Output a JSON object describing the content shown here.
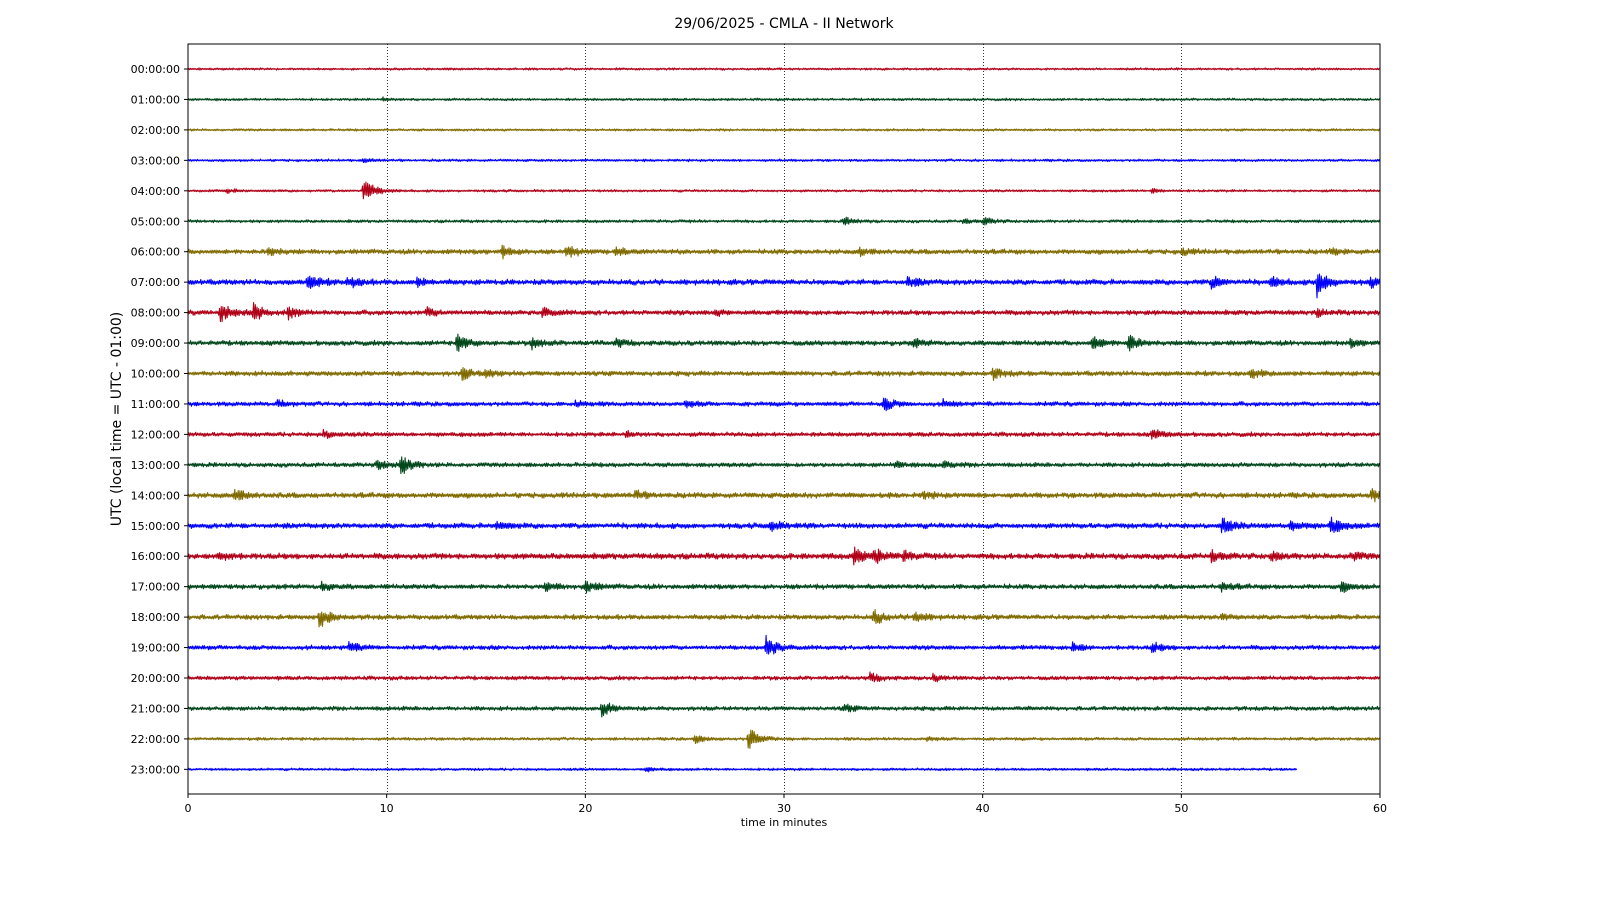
{
  "chart_data": {
    "type": "line",
    "title": "29/06/2025 - CMLA - II Network",
    "xlabel": "time in minutes",
    "ylabel": "UTC (local time = UTC - 01:00)",
    "xlim": [
      0,
      60
    ],
    "x_ticks": [
      "0",
      "10",
      "20",
      "30",
      "40",
      "50",
      "60"
    ],
    "x_tick_values": [
      0,
      10,
      20,
      30,
      40,
      50,
      60
    ],
    "vertical_gridlines_at_minutes": [
      10,
      20,
      30,
      40,
      50
    ],
    "grid": "vertical dotted",
    "legend": "none",
    "series_colors_cycle": [
      "#b00018",
      "#00471b",
      "#806b00",
      "#0000ff"
    ],
    "series": [
      {
        "label": "00:00:00",
        "color": "#b00018",
        "noise": 0.9,
        "end_minute": 60,
        "events": []
      },
      {
        "label": "01:00:00",
        "color": "#00471b",
        "noise": 1.0,
        "end_minute": 60,
        "events": [
          {
            "minute": 9.8,
            "amp": 1.5
          }
        ]
      },
      {
        "label": "02:00:00",
        "color": "#806b00",
        "noise": 0.95,
        "end_minute": 60,
        "events": []
      },
      {
        "label": "03:00:00",
        "color": "#0000ff",
        "noise": 1.0,
        "end_minute": 60,
        "events": [
          {
            "minute": 8.8,
            "amp": 2.0
          }
        ]
      },
      {
        "label": "04:00:00",
        "color": "#b00018",
        "noise": 1.0,
        "end_minute": 60,
        "events": [
          {
            "minute": 8.8,
            "amp": 14
          },
          {
            "minute": 1.9,
            "amp": 2
          },
          {
            "minute": 48.5,
            "amp": 2
          }
        ]
      },
      {
        "label": "05:00:00",
        "color": "#00471b",
        "noise": 1.2,
        "end_minute": 60,
        "events": [
          {
            "minute": 33.0,
            "amp": 4
          },
          {
            "minute": 40.0,
            "amp": 3.5
          },
          {
            "minute": 39.0,
            "amp": 2
          }
        ]
      },
      {
        "label": "06:00:00",
        "color": "#806b00",
        "noise": 2.0,
        "end_minute": 60,
        "events": [
          {
            "minute": 4.0,
            "amp": 5
          },
          {
            "minute": 15.8,
            "amp": 6
          },
          {
            "minute": 19.0,
            "amp": 6
          },
          {
            "minute": 21.5,
            "amp": 4
          },
          {
            "minute": 33.8,
            "amp": 4
          },
          {
            "minute": 50.0,
            "amp": 3
          },
          {
            "minute": 57.5,
            "amp": 3
          }
        ]
      },
      {
        "label": "07:00:00",
        "color": "#0000ff",
        "noise": 2.2,
        "end_minute": 60,
        "events": [
          {
            "minute": 6.0,
            "amp": 9
          },
          {
            "minute": 8.0,
            "amp": 6
          },
          {
            "minute": 11.5,
            "amp": 4
          },
          {
            "minute": 36.2,
            "amp": 5
          },
          {
            "minute": 51.5,
            "amp": 6
          },
          {
            "minute": 54.5,
            "amp": 5
          },
          {
            "minute": 56.8,
            "amp": 14
          },
          {
            "minute": 59.5,
            "amp": 5
          }
        ]
      },
      {
        "label": "08:00:00",
        "color": "#b00018",
        "noise": 2.0,
        "end_minute": 60,
        "events": [
          {
            "minute": 1.6,
            "amp": 10
          },
          {
            "minute": 3.3,
            "amp": 9
          },
          {
            "minute": 5.0,
            "amp": 6
          },
          {
            "minute": 12.0,
            "amp": 4
          },
          {
            "minute": 17.8,
            "amp": 5
          },
          {
            "minute": 26.5,
            "amp": 3
          },
          {
            "minute": 56.8,
            "amp": 3
          }
        ]
      },
      {
        "label": "09:00:00",
        "color": "#00471b",
        "noise": 2.0,
        "end_minute": 60,
        "events": [
          {
            "minute": 13.5,
            "amp": 9
          },
          {
            "minute": 17.3,
            "amp": 5
          },
          {
            "minute": 21.5,
            "amp": 4
          },
          {
            "minute": 36.5,
            "amp": 4
          },
          {
            "minute": 45.5,
            "amp": 7
          },
          {
            "minute": 47.3,
            "amp": 9
          },
          {
            "minute": 58.5,
            "amp": 3
          }
        ]
      },
      {
        "label": "10:00:00",
        "color": "#806b00",
        "noise": 2.0,
        "end_minute": 60,
        "events": [
          {
            "minute": 13.8,
            "amp": 6
          },
          {
            "minute": 15.0,
            "amp": 4
          },
          {
            "minute": 40.5,
            "amp": 5
          },
          {
            "minute": 53.5,
            "amp": 5
          }
        ]
      },
      {
        "label": "11:00:00",
        "color": "#0000ff",
        "noise": 1.8,
        "end_minute": 60,
        "events": [
          {
            "minute": 4.5,
            "amp": 3
          },
          {
            "minute": 19.5,
            "amp": 3
          },
          {
            "minute": 25.0,
            "amp": 4
          },
          {
            "minute": 35.0,
            "amp": 7
          },
          {
            "minute": 38.0,
            "amp": 3
          }
        ]
      },
      {
        "label": "12:00:00",
        "color": "#b00018",
        "noise": 1.8,
        "end_minute": 60,
        "events": [
          {
            "minute": 6.8,
            "amp": 4
          },
          {
            "minute": 22.0,
            "amp": 3
          },
          {
            "minute": 48.5,
            "amp": 5
          }
        ]
      },
      {
        "label": "13:00:00",
        "color": "#00471b",
        "noise": 1.8,
        "end_minute": 60,
        "events": [
          {
            "minute": 9.5,
            "amp": 5
          },
          {
            "minute": 10.7,
            "amp": 10
          },
          {
            "minute": 35.5,
            "amp": 3
          },
          {
            "minute": 38.0,
            "amp": 3
          }
        ]
      },
      {
        "label": "14:00:00",
        "color": "#806b00",
        "noise": 2.2,
        "end_minute": 60,
        "events": [
          {
            "minute": 2.3,
            "amp": 7
          },
          {
            "minute": 22.5,
            "amp": 4
          },
          {
            "minute": 37.0,
            "amp": 3
          },
          {
            "minute": 59.5,
            "amp": 7
          }
        ]
      },
      {
        "label": "15:00:00",
        "color": "#0000ff",
        "noise": 2.2,
        "end_minute": 60,
        "events": [
          {
            "minute": 15.5,
            "amp": 4
          },
          {
            "minute": 29.3,
            "amp": 5
          },
          {
            "minute": 52.0,
            "amp": 8
          },
          {
            "minute": 55.5,
            "amp": 6
          },
          {
            "minute": 57.5,
            "amp": 8
          }
        ]
      },
      {
        "label": "16:00:00",
        "color": "#b00018",
        "noise": 2.4,
        "end_minute": 60,
        "events": [
          {
            "minute": 1.5,
            "amp": 5
          },
          {
            "minute": 33.5,
            "amp": 8
          },
          {
            "minute": 34.5,
            "amp": 7
          },
          {
            "minute": 36.0,
            "amp": 4
          },
          {
            "minute": 51.5,
            "amp": 5
          },
          {
            "minute": 54.5,
            "amp": 4
          },
          {
            "minute": 58.5,
            "amp": 4
          }
        ]
      },
      {
        "label": "17:00:00",
        "color": "#00471b",
        "noise": 2.0,
        "end_minute": 60,
        "events": [
          {
            "minute": 6.7,
            "amp": 4
          },
          {
            "minute": 18.0,
            "amp": 4
          },
          {
            "minute": 20.0,
            "amp": 6
          },
          {
            "minute": 52.0,
            "amp": 4
          },
          {
            "minute": 58.0,
            "amp": 5
          }
        ]
      },
      {
        "label": "18:00:00",
        "color": "#806b00",
        "noise": 2.0,
        "end_minute": 60,
        "events": [
          {
            "minute": 6.6,
            "amp": 10
          },
          {
            "minute": 34.5,
            "amp": 7
          },
          {
            "minute": 36.5,
            "amp": 6
          },
          {
            "minute": 52.0,
            "amp": 3
          }
        ]
      },
      {
        "label": "19:00:00",
        "color": "#0000ff",
        "noise": 1.8,
        "end_minute": 60,
        "events": [
          {
            "minute": 8.1,
            "amp": 5
          },
          {
            "minute": 29.1,
            "amp": 12
          },
          {
            "minute": 44.5,
            "amp": 5
          },
          {
            "minute": 48.5,
            "amp": 5
          }
        ]
      },
      {
        "label": "20:00:00",
        "color": "#b00018",
        "noise": 1.6,
        "end_minute": 60,
        "events": [
          {
            "minute": 34.3,
            "amp": 5
          },
          {
            "minute": 37.5,
            "amp": 3
          }
        ]
      },
      {
        "label": "21:00:00",
        "color": "#00471b",
        "noise": 1.7,
        "end_minute": 60,
        "events": [
          {
            "minute": 20.8,
            "amp": 8
          },
          {
            "minute": 33.0,
            "amp": 4
          }
        ]
      },
      {
        "label": "22:00:00",
        "color": "#806b00",
        "noise": 1.2,
        "end_minute": 60,
        "events": [
          {
            "minute": 28.2,
            "amp": 12
          },
          {
            "minute": 25.5,
            "amp": 4
          },
          {
            "minute": 37.2,
            "amp": 2
          }
        ]
      },
      {
        "label": "23:00:00",
        "color": "#0000ff",
        "noise": 1.0,
        "end_minute": 55.8,
        "events": [
          {
            "minute": 23.0,
            "amp": 2
          }
        ]
      }
    ]
  }
}
